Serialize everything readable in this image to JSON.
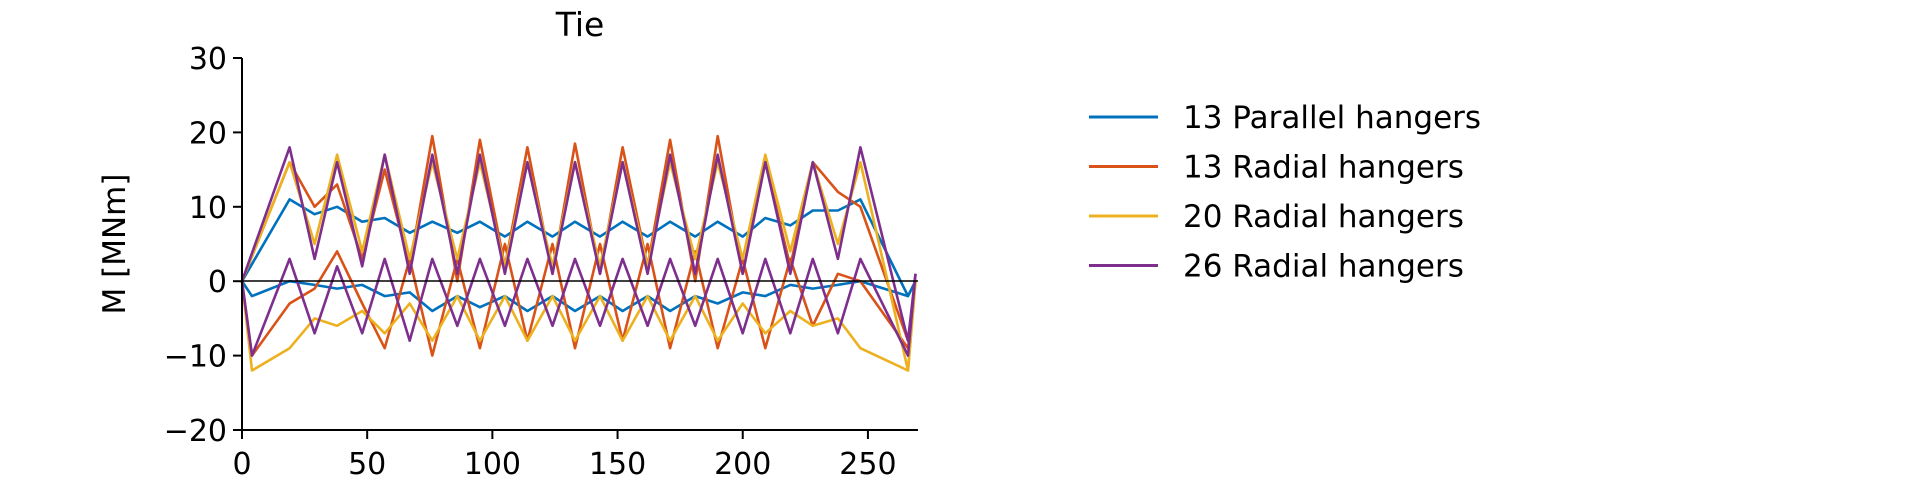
{
  "chart_data": {
    "type": "line",
    "title": "Tie",
    "xlabel": "",
    "ylabel": "M [MNm]",
    "xlim": [
      0,
      270
    ],
    "ylim": [
      -20,
      30
    ],
    "xticks": [
      0,
      50,
      100,
      150,
      200,
      250
    ],
    "yticks": [
      -20,
      -10,
      0,
      10,
      20,
      30
    ],
    "grid": false,
    "legend_position": "right, outside plot",
    "series": [
      {
        "name": "13 Parallel hangers",
        "color": "#0072BD",
        "upper": [
          [
            0,
            0
          ],
          [
            19,
            11
          ],
          [
            29,
            9
          ],
          [
            38,
            10
          ],
          [
            48,
            8
          ],
          [
            57,
            8.5
          ],
          [
            67,
            6.5
          ],
          [
            76,
            8
          ],
          [
            86,
            6.5
          ],
          [
            95,
            8
          ],
          [
            105,
            6
          ],
          [
            114,
            8
          ],
          [
            124,
            6
          ],
          [
            133,
            8
          ],
          [
            143,
            6
          ],
          [
            152,
            8
          ],
          [
            162,
            6
          ],
          [
            171,
            8
          ],
          [
            181,
            6
          ],
          [
            190,
            8
          ],
          [
            200,
            6
          ],
          [
            209,
            8.5
          ],
          [
            219,
            7.5
          ],
          [
            228,
            9.5
          ],
          [
            238,
            9.5
          ],
          [
            247,
            11
          ],
          [
            266,
            -2
          ],
          [
            269,
            0
          ]
        ],
        "lower": [
          [
            0,
            0
          ],
          [
            4,
            -2
          ],
          [
            19,
            0
          ],
          [
            29,
            -0.5
          ],
          [
            38,
            -1
          ],
          [
            48,
            -0.5
          ],
          [
            57,
            -2
          ],
          [
            67,
            -1.5
          ],
          [
            76,
            -4
          ],
          [
            86,
            -2
          ],
          [
            95,
            -3.5
          ],
          [
            105,
            -2
          ],
          [
            114,
            -4
          ],
          [
            124,
            -2
          ],
          [
            133,
            -4
          ],
          [
            143,
            -2
          ],
          [
            152,
            -4
          ],
          [
            162,
            -2
          ],
          [
            171,
            -4
          ],
          [
            181,
            -2
          ],
          [
            190,
            -3
          ],
          [
            200,
            -1.5
          ],
          [
            209,
            -2
          ],
          [
            219,
            -0.5
          ],
          [
            228,
            -1
          ],
          [
            238,
            -0.5
          ],
          [
            247,
            0
          ],
          [
            266,
            -2
          ],
          [
            269,
            0
          ]
        ]
      },
      {
        "name": "13 Radial hangers",
        "color": "#D95319",
        "upper": [
          [
            0,
            0
          ],
          [
            19,
            16
          ],
          [
            29,
            10
          ],
          [
            38,
            13
          ],
          [
            48,
            3
          ],
          [
            57,
            15
          ],
          [
            67,
            2
          ],
          [
            76,
            19.5
          ],
          [
            86,
            0
          ],
          [
            95,
            19
          ],
          [
            105,
            2
          ],
          [
            114,
            18
          ],
          [
            124,
            1
          ],
          [
            133,
            18.5
          ],
          [
            143,
            1
          ],
          [
            152,
            18
          ],
          [
            162,
            2
          ],
          [
            171,
            19
          ],
          [
            181,
            0
          ],
          [
            190,
            19.5
          ],
          [
            200,
            1
          ],
          [
            209,
            16
          ],
          [
            219,
            2
          ],
          [
            228,
            16
          ],
          [
            238,
            12
          ],
          [
            247,
            10
          ],
          [
            266,
            -8
          ],
          [
            269,
            0
          ]
        ],
        "lower": [
          [
            0,
            0
          ],
          [
            4,
            -10
          ],
          [
            19,
            -3
          ],
          [
            29,
            -1
          ],
          [
            38,
            4
          ],
          [
            48,
            -3
          ],
          [
            57,
            -9
          ],
          [
            67,
            3
          ],
          [
            76,
            -10
          ],
          [
            86,
            3
          ],
          [
            95,
            -9
          ],
          [
            105,
            5
          ],
          [
            114,
            -8
          ],
          [
            124,
            5
          ],
          [
            133,
            -9
          ],
          [
            143,
            5
          ],
          [
            152,
            -8
          ],
          [
            162,
            5
          ],
          [
            171,
            -9
          ],
          [
            181,
            4
          ],
          [
            190,
            -9
          ],
          [
            200,
            3
          ],
          [
            209,
            -9
          ],
          [
            219,
            3
          ],
          [
            228,
            -6
          ],
          [
            238,
            1
          ],
          [
            247,
            0
          ],
          [
            266,
            -9
          ],
          [
            269,
            0
          ]
        ]
      },
      {
        "name": "20 Radial hangers",
        "color": "#EDB120",
        "upper": [
          [
            0,
            0
          ],
          [
            19,
            16
          ],
          [
            29,
            5
          ],
          [
            38,
            17
          ],
          [
            48,
            4
          ],
          [
            57,
            17
          ],
          [
            67,
            3
          ],
          [
            76,
            16
          ],
          [
            86,
            3
          ],
          [
            95,
            16
          ],
          [
            105,
            2
          ],
          [
            114,
            16
          ],
          [
            124,
            2
          ],
          [
            133,
            16
          ],
          [
            143,
            2
          ],
          [
            152,
            16
          ],
          [
            162,
            2
          ],
          [
            171,
            16
          ],
          [
            181,
            3
          ],
          [
            190,
            16
          ],
          [
            200,
            3
          ],
          [
            209,
            17
          ],
          [
            219,
            4
          ],
          [
            228,
            16
          ],
          [
            238,
            5
          ],
          [
            247,
            16
          ],
          [
            266,
            -12
          ],
          [
            269,
            0
          ]
        ],
        "lower": [
          [
            0,
            0
          ],
          [
            4,
            -12
          ],
          [
            19,
            -9
          ],
          [
            29,
            -5
          ],
          [
            38,
            -6
          ],
          [
            48,
            -4
          ],
          [
            57,
            -7
          ],
          [
            67,
            -3
          ],
          [
            76,
            -8
          ],
          [
            86,
            -2
          ],
          [
            95,
            -8
          ],
          [
            105,
            -2
          ],
          [
            114,
            -8
          ],
          [
            124,
            -2
          ],
          [
            133,
            -8
          ],
          [
            143,
            -2
          ],
          [
            152,
            -8
          ],
          [
            162,
            -2
          ],
          [
            171,
            -8
          ],
          [
            181,
            -2
          ],
          [
            190,
            -8
          ],
          [
            200,
            -3
          ],
          [
            209,
            -7
          ],
          [
            219,
            -4
          ],
          [
            228,
            -6
          ],
          [
            238,
            -5
          ],
          [
            247,
            -9
          ],
          [
            266,
            -12
          ],
          [
            269,
            0
          ]
        ]
      },
      {
        "name": "26 Radial hangers",
        "color": "#7E2F8E",
        "upper": [
          [
            0,
            0
          ],
          [
            19,
            18
          ],
          [
            29,
            3
          ],
          [
            38,
            16
          ],
          [
            48,
            2
          ],
          [
            57,
            17
          ],
          [
            67,
            1
          ],
          [
            76,
            17
          ],
          [
            86,
            1
          ],
          [
            95,
            17
          ],
          [
            105,
            1
          ],
          [
            114,
            16
          ],
          [
            124,
            1
          ],
          [
            133,
            16
          ],
          [
            143,
            1
          ],
          [
            152,
            16
          ],
          [
            162,
            1
          ],
          [
            171,
            17
          ],
          [
            181,
            1
          ],
          [
            190,
            17
          ],
          [
            200,
            1
          ],
          [
            209,
            16
          ],
          [
            219,
            1
          ],
          [
            228,
            16
          ],
          [
            238,
            3
          ],
          [
            247,
            18
          ],
          [
            266,
            -8
          ],
          [
            269,
            1
          ]
        ],
        "lower": [
          [
            0,
            0
          ],
          [
            4,
            -10
          ],
          [
            19,
            3
          ],
          [
            29,
            -7
          ],
          [
            38,
            2
          ],
          [
            48,
            -7
          ],
          [
            57,
            3
          ],
          [
            67,
            -8
          ],
          [
            76,
            3
          ],
          [
            86,
            -6
          ],
          [
            95,
            3
          ],
          [
            105,
            -6
          ],
          [
            114,
            3
          ],
          [
            124,
            -6
          ],
          [
            133,
            3
          ],
          [
            143,
            -6
          ],
          [
            152,
            3
          ],
          [
            162,
            -6
          ],
          [
            171,
            3
          ],
          [
            181,
            -6
          ],
          [
            190,
            3
          ],
          [
            200,
            -7
          ],
          [
            209,
            3
          ],
          [
            219,
            -7
          ],
          [
            228,
            3
          ],
          [
            238,
            -7
          ],
          [
            247,
            3
          ],
          [
            266,
            -10
          ],
          [
            269,
            1
          ]
        ]
      }
    ]
  }
}
